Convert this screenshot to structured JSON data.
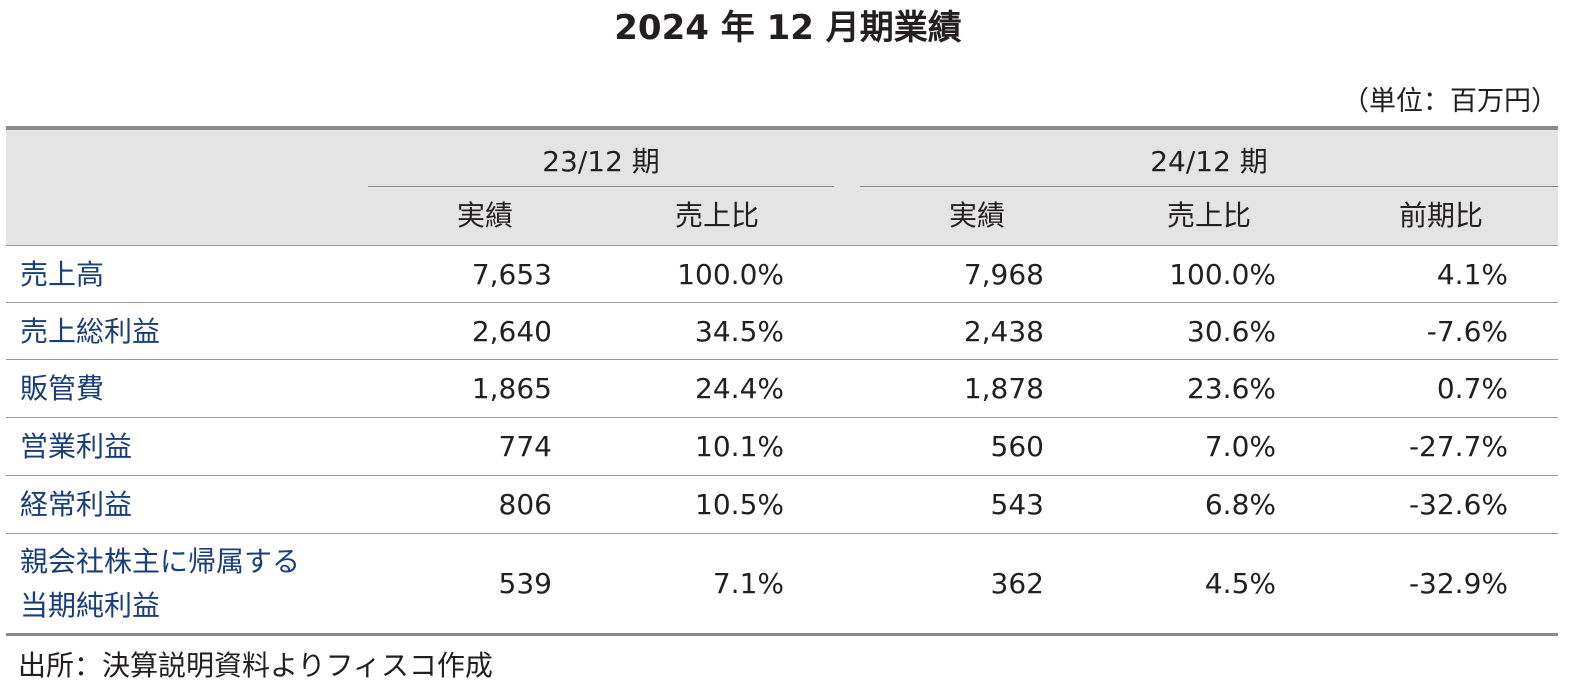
{
  "title": "2024 年 12 月期業績",
  "unit": "（単位：百万円）",
  "header": {
    "period1": "23/12 期",
    "period2": "24/12 期",
    "col_actual": "実績",
    "col_ratio": "売上比",
    "col_yoy": "前期比"
  },
  "rows": [
    {
      "label": "売上高",
      "a1": "7,653",
      "r1": "100.0%",
      "a2": "7,968",
      "r2": "100.0%",
      "yoy": "4.1%"
    },
    {
      "label": "売上総利益",
      "a1": "2,640",
      "r1": "34.5%",
      "a2": "2,438",
      "r2": "30.6%",
      "yoy": "-7.6%"
    },
    {
      "label": "販管費",
      "a1": "1,865",
      "r1": "24.4%",
      "a2": "1,878",
      "r2": "23.6%",
      "yoy": "0.7%"
    },
    {
      "label": "営業利益",
      "a1": "774",
      "r1": "10.1%",
      "a2": "560",
      "r2": "7.0%",
      "yoy": "-27.7%"
    },
    {
      "label": "経常利益",
      "a1": "806",
      "r1": "10.5%",
      "a2": "543",
      "r2": "6.8%",
      "yoy": "-32.6%"
    },
    {
      "label_line1": "親会社株主に帰属する",
      "label_line2": "当期純利益",
      "a1": "539",
      "r1": "7.1%",
      "a2": "362",
      "r2": "4.5%",
      "yoy": "-32.9%"
    }
  ],
  "source": "出所：決算説明資料よりフィスコ作成"
}
